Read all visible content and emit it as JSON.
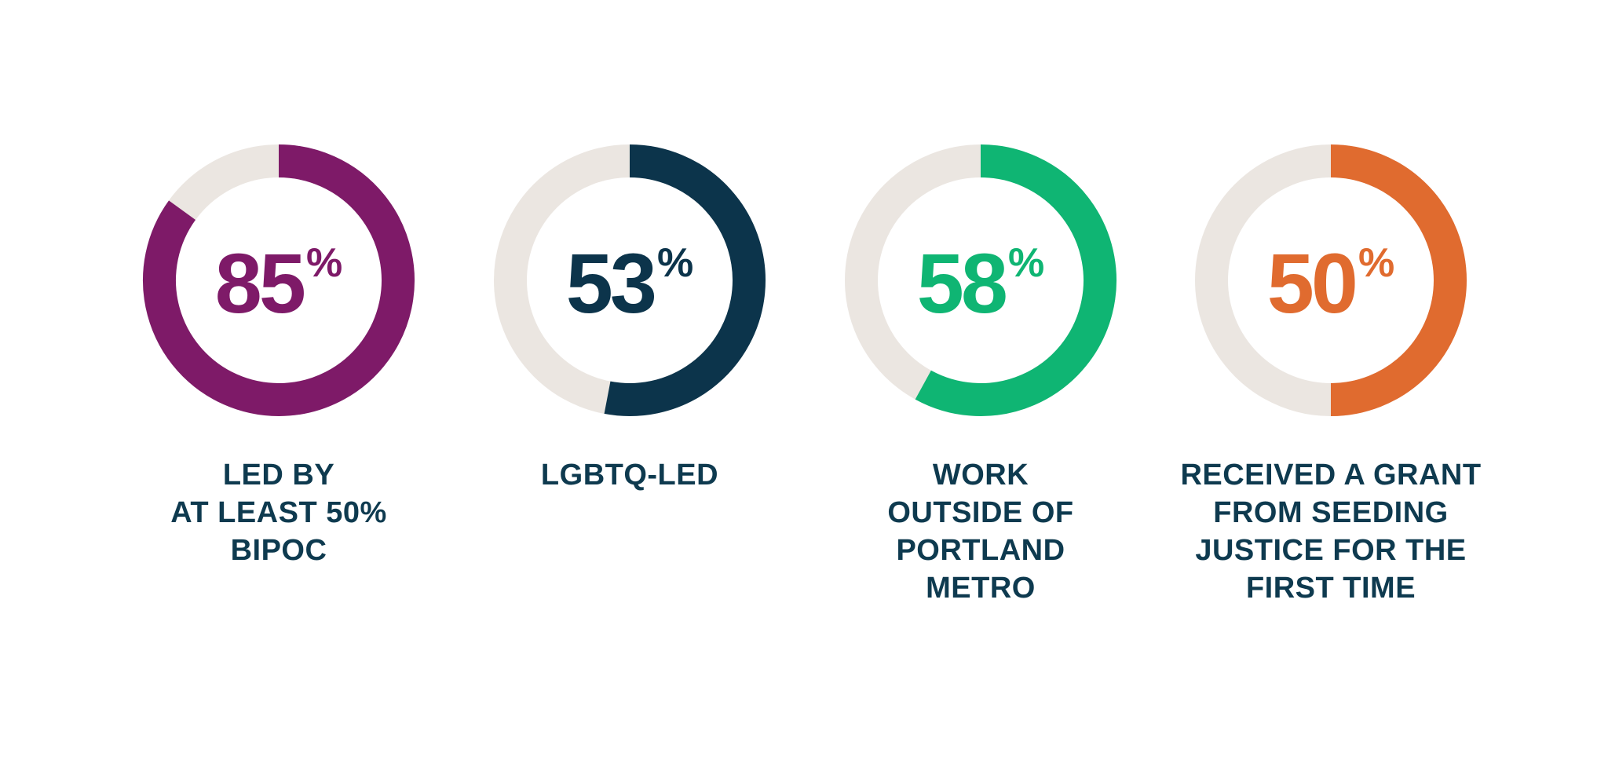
{
  "chart_data": [
    {
      "type": "pie",
      "values": [
        85,
        15
      ],
      "value_text": "85",
      "unit": "%",
      "label": "LED BY\nAT LEAST 50%\nBIPOC",
      "color": "#7e1a68",
      "track_color": "#ebe6e1"
    },
    {
      "type": "pie",
      "values": [
        53,
        47
      ],
      "value_text": "53",
      "unit": "%",
      "label": "LGBTQ-LED",
      "color": "#0c344b",
      "track_color": "#ebe6e1"
    },
    {
      "type": "pie",
      "values": [
        58,
        42
      ],
      "value_text": "58",
      "unit": "%",
      "label": "WORK\nOUTSIDE OF\nPORTLAND\nMETRO",
      "color": "#0fb573",
      "track_color": "#ebe6e1"
    },
    {
      "type": "pie",
      "values": [
        50,
        50
      ],
      "value_text": "50",
      "unit": "%",
      "label": "RECEIVED A GRANT\nFROM SEEDING\nJUSTICE FOR THE\nFIRST TIME",
      "color": "#e06b2f",
      "track_color": "#ebe6e1"
    }
  ]
}
